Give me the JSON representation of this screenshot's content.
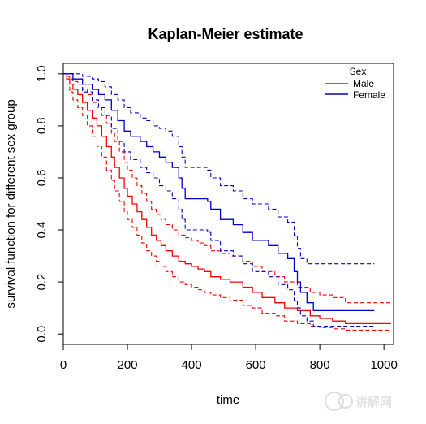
{
  "chart_data": {
    "type": "line",
    "title": "Kaplan-Meier estimate",
    "xlabel": "time",
    "ylabel": "survival function for different sex group",
    "xlim": [
      0,
      1030
    ],
    "ylim": [
      -0.04,
      1.04
    ],
    "xticks": [
      0,
      200,
      400,
      600,
      800,
      1000
    ],
    "yticks": [
      0.0,
      0.2,
      0.4,
      0.6,
      0.8,
      1.0
    ],
    "xtick_labels": [
      "0",
      "200",
      "400",
      "600",
      "800",
      "1000"
    ],
    "ytick_labels": [
      "0.0",
      "0.2",
      "0.4",
      "0.6",
      "0.8",
      "1.0"
    ],
    "grid": false,
    "legend": {
      "title": "Sex",
      "position": "top-right",
      "entries": [
        "Male",
        "Female"
      ]
    },
    "series": [
      {
        "name": "Male",
        "color": "#ff0000",
        "style": "solid",
        "points": [
          [
            0,
            1.0
          ],
          [
            11,
            0.98
          ],
          [
            20,
            0.96
          ],
          [
            30,
            0.94
          ],
          [
            45,
            0.92
          ],
          [
            60,
            0.89
          ],
          [
            75,
            0.86
          ],
          [
            90,
            0.83
          ],
          [
            105,
            0.8
          ],
          [
            120,
            0.76
          ],
          [
            135,
            0.72
          ],
          [
            150,
            0.68
          ],
          [
            160,
            0.64
          ],
          [
            175,
            0.6
          ],
          [
            190,
            0.56
          ],
          [
            200,
            0.53
          ],
          [
            215,
            0.5
          ],
          [
            230,
            0.47
          ],
          [
            245,
            0.44
          ],
          [
            260,
            0.41
          ],
          [
            275,
            0.38
          ],
          [
            290,
            0.36
          ],
          [
            305,
            0.34
          ],
          [
            320,
            0.32
          ],
          [
            340,
            0.3
          ],
          [
            360,
            0.28
          ],
          [
            380,
            0.27
          ],
          [
            400,
            0.26
          ],
          [
            420,
            0.25
          ],
          [
            440,
            0.24
          ],
          [
            460,
            0.22
          ],
          [
            490,
            0.21
          ],
          [
            520,
            0.2
          ],
          [
            560,
            0.18
          ],
          [
            590,
            0.16
          ],
          [
            620,
            0.14
          ],
          [
            660,
            0.12
          ],
          [
            690,
            0.1
          ],
          [
            730,
            0.09
          ],
          [
            770,
            0.07
          ],
          [
            800,
            0.06
          ],
          [
            840,
            0.05
          ],
          [
            880,
            0.04
          ],
          [
            1022,
            0.04
          ]
        ]
      },
      {
        "name": "Male lower 95% CI",
        "color": "#ff0000",
        "style": "dashed",
        "points": [
          [
            0,
            1.0
          ],
          [
            11,
            0.96
          ],
          [
            20,
            0.93
          ],
          [
            30,
            0.9
          ],
          [
            45,
            0.87
          ],
          [
            60,
            0.84
          ],
          [
            75,
            0.8
          ],
          [
            90,
            0.76
          ],
          [
            105,
            0.72
          ],
          [
            120,
            0.68
          ],
          [
            135,
            0.63
          ],
          [
            150,
            0.59
          ],
          [
            160,
            0.55
          ],
          [
            175,
            0.51
          ],
          [
            190,
            0.47
          ],
          [
            200,
            0.44
          ],
          [
            215,
            0.41
          ],
          [
            230,
            0.38
          ],
          [
            245,
            0.35
          ],
          [
            260,
            0.32
          ],
          [
            275,
            0.3
          ],
          [
            290,
            0.28
          ],
          [
            305,
            0.26
          ],
          [
            320,
            0.24
          ],
          [
            340,
            0.22
          ],
          [
            360,
            0.2
          ],
          [
            380,
            0.19
          ],
          [
            400,
            0.18
          ],
          [
            420,
            0.17
          ],
          [
            440,
            0.16
          ],
          [
            460,
            0.15
          ],
          [
            490,
            0.14
          ],
          [
            520,
            0.13
          ],
          [
            560,
            0.11
          ],
          [
            590,
            0.1
          ],
          [
            620,
            0.08
          ],
          [
            660,
            0.07
          ],
          [
            690,
            0.05
          ],
          [
            730,
            0.04
          ],
          [
            770,
            0.03
          ],
          [
            800,
            0.025
          ],
          [
            840,
            0.02
          ],
          [
            880,
            0.015
          ],
          [
            1022,
            0.015
          ]
        ]
      },
      {
        "name": "Male upper 95% CI",
        "color": "#ff0000",
        "style": "dashed",
        "points": [
          [
            0,
            1.0
          ],
          [
            11,
            0.99
          ],
          [
            20,
            0.98
          ],
          [
            30,
            0.97
          ],
          [
            45,
            0.96
          ],
          [
            60,
            0.94
          ],
          [
            75,
            0.92
          ],
          [
            90,
            0.89
          ],
          [
            105,
            0.87
          ],
          [
            120,
            0.84
          ],
          [
            135,
            0.81
          ],
          [
            150,
            0.77
          ],
          [
            160,
            0.74
          ],
          [
            175,
            0.7
          ],
          [
            190,
            0.66
          ],
          [
            200,
            0.63
          ],
          [
            215,
            0.6
          ],
          [
            230,
            0.57
          ],
          [
            245,
            0.54
          ],
          [
            260,
            0.51
          ],
          [
            275,
            0.48
          ],
          [
            290,
            0.46
          ],
          [
            305,
            0.44
          ],
          [
            320,
            0.42
          ],
          [
            340,
            0.4
          ],
          [
            360,
            0.38
          ],
          [
            380,
            0.37
          ],
          [
            400,
            0.36
          ],
          [
            420,
            0.35
          ],
          [
            440,
            0.34
          ],
          [
            460,
            0.32
          ],
          [
            490,
            0.31
          ],
          [
            520,
            0.3
          ],
          [
            560,
            0.28
          ],
          [
            590,
            0.26
          ],
          [
            620,
            0.24
          ],
          [
            660,
            0.22
          ],
          [
            690,
            0.2
          ],
          [
            730,
            0.18
          ],
          [
            770,
            0.16
          ],
          [
            800,
            0.15
          ],
          [
            840,
            0.14
          ],
          [
            880,
            0.12
          ],
          [
            1022,
            0.12
          ]
        ]
      },
      {
        "name": "Female",
        "color": "#0000cc",
        "style": "solid",
        "points": [
          [
            0,
            1.0
          ],
          [
            30,
            0.98
          ],
          [
            60,
            0.96
          ],
          [
            90,
            0.94
          ],
          [
            110,
            0.92
          ],
          [
            130,
            0.9
          ],
          [
            150,
            0.86
          ],
          [
            170,
            0.82
          ],
          [
            190,
            0.78
          ],
          [
            210,
            0.76
          ],
          [
            240,
            0.74
          ],
          [
            260,
            0.72
          ],
          [
            280,
            0.7
          ],
          [
            300,
            0.68
          ],
          [
            320,
            0.66
          ],
          [
            340,
            0.64
          ],
          [
            360,
            0.6
          ],
          [
            370,
            0.56
          ],
          [
            380,
            0.52
          ],
          [
            450,
            0.51
          ],
          [
            460,
            0.48
          ],
          [
            490,
            0.44
          ],
          [
            530,
            0.42
          ],
          [
            560,
            0.39
          ],
          [
            590,
            0.36
          ],
          [
            640,
            0.34
          ],
          [
            670,
            0.31
          ],
          [
            700,
            0.29
          ],
          [
            720,
            0.24
          ],
          [
            730,
            0.2
          ],
          [
            740,
            0.16
          ],
          [
            760,
            0.12
          ],
          [
            780,
            0.09
          ],
          [
            970,
            0.09
          ]
        ]
      },
      {
        "name": "Female lower 95% CI",
        "color": "#0000cc",
        "style": "dashed",
        "points": [
          [
            0,
            1.0
          ],
          [
            30,
            0.96
          ],
          [
            60,
            0.93
          ],
          [
            90,
            0.9
          ],
          [
            110,
            0.87
          ],
          [
            130,
            0.84
          ],
          [
            150,
            0.79
          ],
          [
            170,
            0.74
          ],
          [
            190,
            0.7
          ],
          [
            210,
            0.67
          ],
          [
            240,
            0.64
          ],
          [
            260,
            0.62
          ],
          [
            280,
            0.6
          ],
          [
            300,
            0.57
          ],
          [
            320,
            0.55
          ],
          [
            340,
            0.52
          ],
          [
            360,
            0.48
          ],
          [
            370,
            0.44
          ],
          [
            380,
            0.4
          ],
          [
            450,
            0.39
          ],
          [
            460,
            0.36
          ],
          [
            490,
            0.32
          ],
          [
            530,
            0.3
          ],
          [
            560,
            0.27
          ],
          [
            590,
            0.24
          ],
          [
            640,
            0.22
          ],
          [
            670,
            0.19
          ],
          [
            700,
            0.17
          ],
          [
            720,
            0.13
          ],
          [
            730,
            0.1
          ],
          [
            740,
            0.07
          ],
          [
            760,
            0.05
          ],
          [
            780,
            0.03
          ],
          [
            970,
            0.03
          ]
        ]
      },
      {
        "name": "Female upper 95% CI",
        "color": "#0000cc",
        "style": "dashed",
        "points": [
          [
            0,
            1.0
          ],
          [
            30,
            1.0
          ],
          [
            60,
            0.99
          ],
          [
            90,
            0.98
          ],
          [
            110,
            0.97
          ],
          [
            130,
            0.95
          ],
          [
            150,
            0.92
          ],
          [
            170,
            0.9
          ],
          [
            190,
            0.87
          ],
          [
            210,
            0.85
          ],
          [
            240,
            0.83
          ],
          [
            260,
            0.82
          ],
          [
            280,
            0.8
          ],
          [
            300,
            0.79
          ],
          [
            320,
            0.78
          ],
          [
            340,
            0.76
          ],
          [
            360,
            0.72
          ],
          [
            370,
            0.68
          ],
          [
            380,
            0.64
          ],
          [
            450,
            0.63
          ],
          [
            460,
            0.6
          ],
          [
            490,
            0.57
          ],
          [
            530,
            0.55
          ],
          [
            560,
            0.52
          ],
          [
            590,
            0.5
          ],
          [
            640,
            0.48
          ],
          [
            670,
            0.45
          ],
          [
            700,
            0.43
          ],
          [
            720,
            0.38
          ],
          [
            730,
            0.33
          ],
          [
            740,
            0.29
          ],
          [
            760,
            0.27
          ],
          [
            780,
            0.27
          ],
          [
            970,
            0.27
          ]
        ]
      }
    ]
  }
}
